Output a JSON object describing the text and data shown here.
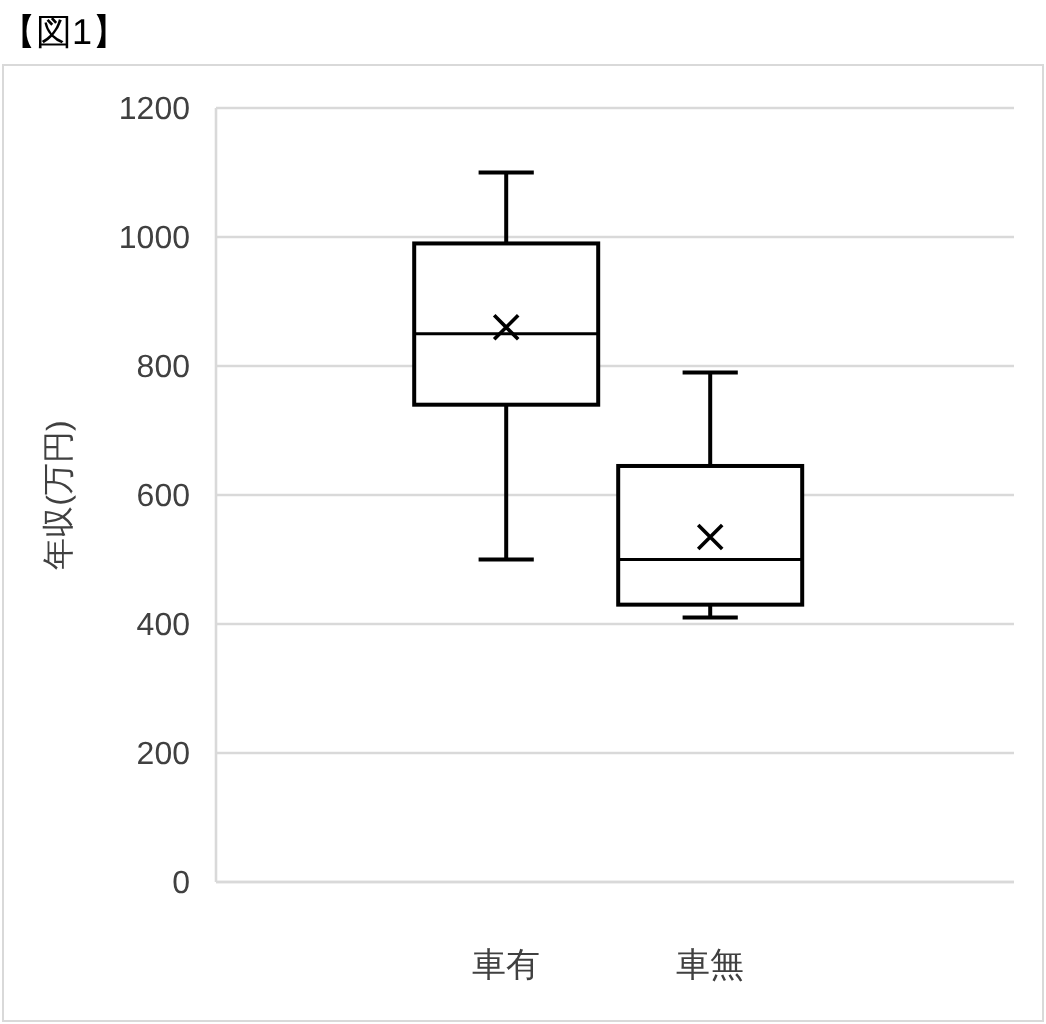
{
  "chart_data": {
    "type": "box",
    "title": "【図1】",
    "ylabel": "年収(万円)",
    "categories": [
      "車有",
      "車無"
    ],
    "boxes": [
      {
        "low": 500,
        "q1": 740,
        "median": 850,
        "q3": 990,
        "high": 1100,
        "mean": 860
      },
      {
        "low": 410,
        "q1": 430,
        "median": 500,
        "q3": 645,
        "high": 790,
        "mean": 535
      }
    ],
    "color": "#000000",
    "ylim": [
      0,
      1200
    ],
    "yticks": [
      0,
      200,
      400,
      600,
      800,
      1000,
      1200
    ],
    "grid": "y",
    "marker": "cross"
  }
}
